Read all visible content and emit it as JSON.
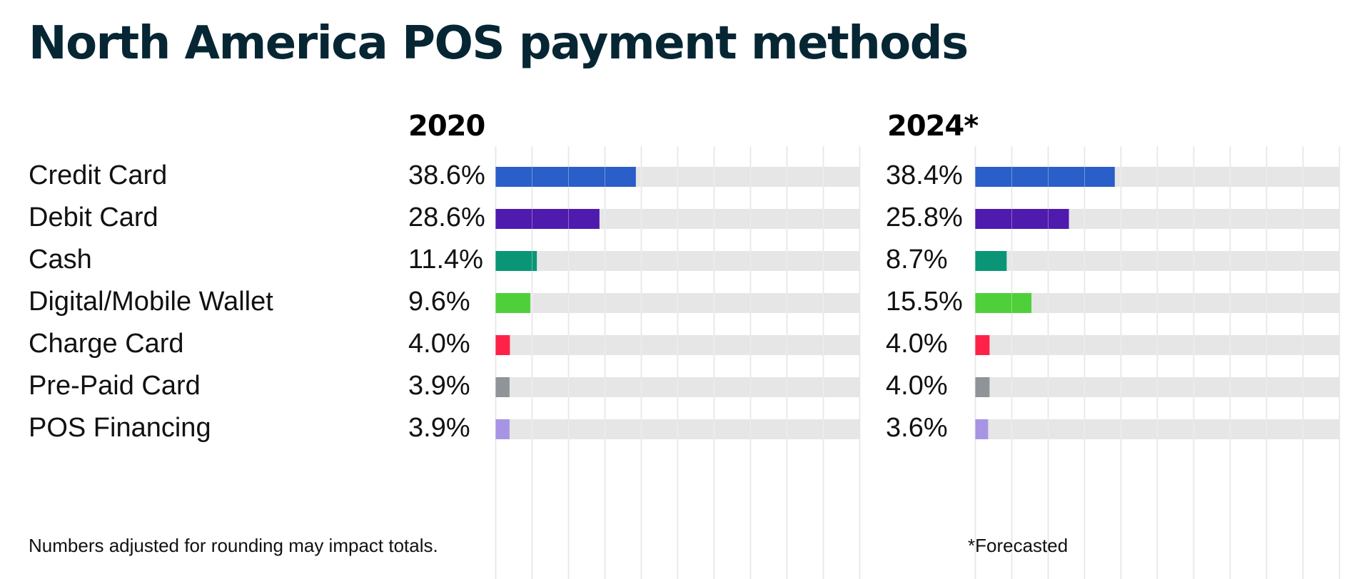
{
  "title": "North America POS payment methods",
  "footnote_left": "Numbers adjusted for rounding may impact totals.",
  "footnote_right": "*Forecasted",
  "chart_data": [
    {
      "type": "bar",
      "orientation": "horizontal",
      "title": "2020",
      "categories": [
        "Credit Card",
        "Debit Card",
        "Cash",
        "Digital/Mobile Wallet",
        "Charge Card",
        "Pre-Paid Card",
        "POS Financing"
      ],
      "values": [
        38.6,
        28.6,
        11.4,
        9.6,
        4.0,
        3.9,
        3.9
      ],
      "value_labels": [
        "38.6%",
        "28.6%",
        "11.4%",
        "9.6%",
        "4.0%",
        "3.9%",
        "3.9%"
      ],
      "colors": [
        "#2a5ec8",
        "#4f1aae",
        "#0a9676",
        "#4fd03a",
        "#ff2248",
        "#8f9498",
        "#a894e4"
      ],
      "xlim": [
        0,
        100
      ],
      "grid": true,
      "unit": "%"
    },
    {
      "type": "bar",
      "orientation": "horizontal",
      "title": "2024*",
      "categories": [
        "Credit Card",
        "Debit Card",
        "Cash",
        "Digital/Mobile Wallet",
        "Charge Card",
        "Pre-Paid Card",
        "POS Financing"
      ],
      "values": [
        38.4,
        25.8,
        8.7,
        15.5,
        4.0,
        4.0,
        3.6
      ],
      "value_labels": [
        "38.4%",
        "25.8%",
        "8.7%",
        "15.5%",
        "4.0%",
        "4.0%",
        "3.6%"
      ],
      "colors": [
        "#2a5ec8",
        "#4f1aae",
        "#0a9676",
        "#4fd03a",
        "#ff2248",
        "#8f9498",
        "#a894e4"
      ],
      "xlim": [
        0,
        100
      ],
      "grid": true,
      "unit": "%"
    }
  ]
}
